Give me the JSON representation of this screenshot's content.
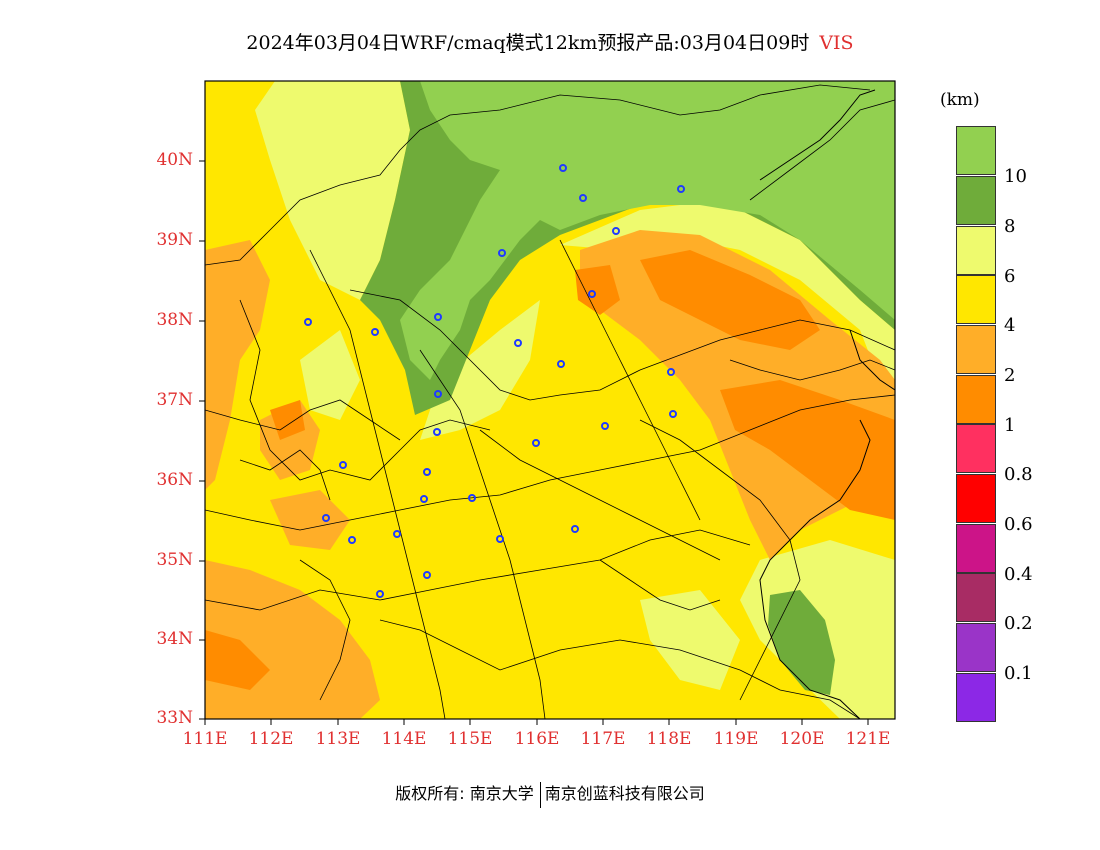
{
  "title": {
    "text": "2024年03月04日WRF/cmaq模式12km预报产品:03月04日09时",
    "variable": "VIS"
  },
  "map": {
    "lat_labels": [
      "40N",
      "39N",
      "38N",
      "37N",
      "36N",
      "35N",
      "34N",
      "33N"
    ],
    "lon_labels": [
      "111E",
      "112E",
      "113E",
      "114E",
      "115E",
      "116E",
      "117E",
      "118E",
      "119E",
      "120E",
      "121E"
    ],
    "lat_range": [
      33,
      41
    ],
    "lon_range": [
      111,
      121.4
    ],
    "site_icon": "station-marker-icon"
  },
  "legend": {
    "unit": "(km)",
    "colors": [
      "#92d050",
      "#6fac3a",
      "#eefa6e",
      "#ffe700",
      "#ffae28",
      "#ff8c00",
      "#ff3060",
      "#ff0000",
      "#cc1488",
      "#a82c64",
      "#9a34c8",
      "#8c28e6"
    ],
    "labels": [
      "10",
      "8",
      "6",
      "4",
      "2",
      "1",
      "0.8",
      "0.6",
      "0.4",
      "0.2",
      "0.1"
    ]
  },
  "footer": {
    "copyright": "版权所有: 南京大学",
    "company": "南京创蓝科技有限公司"
  }
}
